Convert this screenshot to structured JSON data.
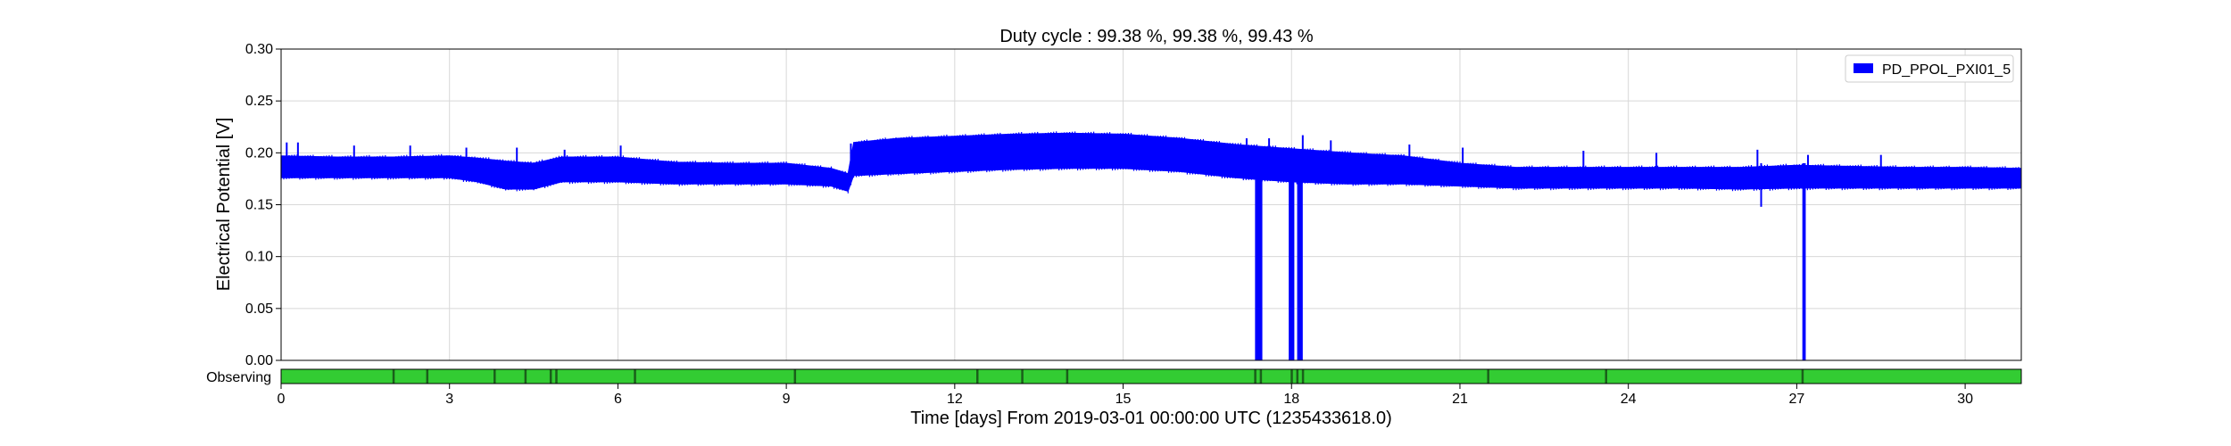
{
  "chart_data": {
    "type": "line",
    "title": "Duty cycle : 99.38 %, 99.38 %, 99.43 %",
    "xlabel": "Time [days] From 2019-03-01 00:00:00 UTC (1235433618.0)",
    "ylabel": "Electrical Potential [V]",
    "xlim": [
      0,
      31
    ],
    "ylim": [
      0,
      0.3
    ],
    "xticks": [
      0,
      3,
      6,
      9,
      12,
      15,
      18,
      21,
      24,
      27,
      30
    ],
    "yticks": [
      "0.00",
      "0.05",
      "0.10",
      "0.15",
      "0.20",
      "0.25",
      "0.30"
    ],
    "grid": true,
    "legend": {
      "position": "top-right"
    },
    "series": [
      {
        "name": "PD_PPOL_PXI01_5",
        "color": "#0000ff",
        "band": {
          "x": [
            0,
            1,
            2,
            3,
            3.5,
            4,
            4.5,
            5,
            6,
            7,
            8,
            9,
            9.8,
            10.1,
            10.2,
            11,
            12,
            13,
            14,
            15,
            16,
            17,
            18,
            19,
            20,
            21,
            22,
            23,
            24,
            25,
            26,
            27,
            28,
            29,
            30,
            31
          ],
          "upper": [
            0.197,
            0.196,
            0.196,
            0.197,
            0.195,
            0.192,
            0.19,
            0.196,
            0.196,
            0.191,
            0.19,
            0.19,
            0.185,
            0.18,
            0.21,
            0.214,
            0.216,
            0.218,
            0.219,
            0.218,
            0.214,
            0.208,
            0.204,
            0.2,
            0.197,
            0.19,
            0.186,
            0.186,
            0.186,
            0.186,
            0.186,
            0.188,
            0.187,
            0.186,
            0.186,
            0.185
          ],
          "lower": [
            0.176,
            0.176,
            0.176,
            0.176,
            0.172,
            0.165,
            0.165,
            0.172,
            0.172,
            0.17,
            0.17,
            0.17,
            0.168,
            0.163,
            0.178,
            0.18,
            0.182,
            0.184,
            0.185,
            0.185,
            0.182,
            0.176,
            0.172,
            0.17,
            0.17,
            0.168,
            0.166,
            0.166,
            0.166,
            0.166,
            0.165,
            0.166,
            0.166,
            0.166,
            0.166,
            0.166
          ]
        },
        "spikes": [
          {
            "x": 0.1,
            "top": 0.21
          },
          {
            "x": 0.3,
            "top": 0.21
          },
          {
            "x": 1.3,
            "top": 0.207
          },
          {
            "x": 2.3,
            "top": 0.207
          },
          {
            "x": 3.3,
            "top": 0.205
          },
          {
            "x": 4.2,
            "top": 0.205
          },
          {
            "x": 5.05,
            "top": 0.203
          },
          {
            "x": 6.05,
            "top": 0.207
          },
          {
            "x": 10.15,
            "top": 0.209
          },
          {
            "x": 17.2,
            "top": 0.214
          },
          {
            "x": 17.6,
            "top": 0.214
          },
          {
            "x": 18.2,
            "top": 0.217
          },
          {
            "x": 18.7,
            "top": 0.212
          },
          {
            "x": 20.1,
            "top": 0.208
          },
          {
            "x": 21.05,
            "top": 0.205
          },
          {
            "x": 23.2,
            "top": 0.202
          },
          {
            "x": 24.5,
            "top": 0.2
          },
          {
            "x": 26.3,
            "top": 0.203
          },
          {
            "x": 27.2,
            "top": 0.198
          },
          {
            "x": 28.5,
            "top": 0.198
          }
        ],
        "dips": [
          {
            "x1": 17.35,
            "x2": 17.48,
            "y": 0.0
          },
          {
            "x1": 17.95,
            "x2": 18.05,
            "y": 0.0
          },
          {
            "x1": 18.1,
            "x2": 18.2,
            "y": 0.0
          },
          {
            "x1": 26.35,
            "x2": 26.38,
            "y": 0.148
          },
          {
            "x1": 27.1,
            "x2": 27.16,
            "y": 0.0
          }
        ]
      }
    ],
    "segments": {
      "label": "Observing",
      "on_color": "#33cc33",
      "gap_color": "#1a5f1a",
      "gaps": [
        2.0,
        2.6,
        3.8,
        4.35,
        4.8,
        4.9,
        6.3,
        9.15,
        12.4,
        13.2,
        14.0,
        17.35,
        17.45,
        18.0,
        18.1,
        18.2,
        21.5,
        23.6,
        27.1
      ]
    }
  }
}
